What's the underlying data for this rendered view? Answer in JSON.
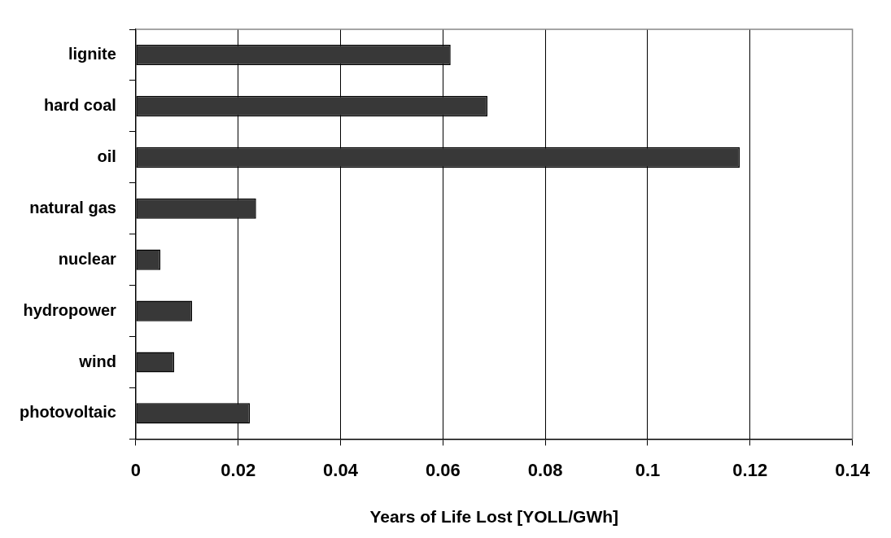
{
  "chart_data": {
    "type": "bar",
    "orientation": "horizontal",
    "xlabel": "Years of Life Lost [YOLL/GWh]",
    "categories": [
      "lignite",
      "hard coal",
      "oil",
      "natural gas",
      "nuclear",
      "hydropower",
      "wind",
      "photovoltaic"
    ],
    "values": [
      0.0615,
      0.0687,
      0.118,
      0.0235,
      0.0048,
      0.011,
      0.0075,
      0.0223
    ],
    "color": "#383838",
    "xlim": [
      0,
      0.14
    ],
    "xticks": [
      0,
      0.02,
      0.04,
      0.06,
      0.08,
      0.1,
      0.12,
      0.14
    ],
    "grid": "x",
    "legend": false
  }
}
